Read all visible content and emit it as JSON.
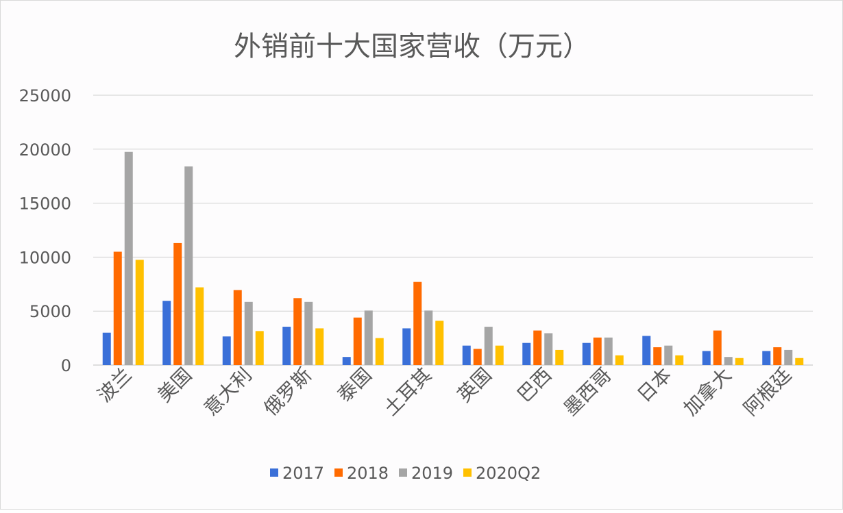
{
  "chart_data": {
    "type": "bar",
    "title": "外销前十大国家营收（万元）",
    "categories": [
      "波兰",
      "美国",
      "意大利",
      "俄罗斯",
      "泰国",
      "土耳其",
      "英国",
      "巴西",
      "墨西哥",
      "日本",
      "加拿大",
      "阿根廷"
    ],
    "series": [
      {
        "name": "2017",
        "color": "#3a6fd8",
        "values": [
          3000,
          5950,
          2650,
          3550,
          750,
          3400,
          1800,
          2050,
          2050,
          2700,
          1300,
          1300
        ]
      },
      {
        "name": "2018",
        "color": "#ff6a00",
        "values": [
          10500,
          11300,
          6950,
          6200,
          4400,
          7700,
          1500,
          3200,
          2550,
          1650,
          3200,
          1650
        ]
      },
      {
        "name": "2019",
        "color": "#a5a5a5",
        "values": [
          19750,
          18400,
          5850,
          5850,
          5050,
          5050,
          3550,
          2950,
          2550,
          1800,
          750,
          1400
        ]
      },
      {
        "name": "2020Q2",
        "color": "#ffc000",
        "values": [
          9750,
          7200,
          3150,
          3400,
          2500,
          4100,
          1800,
          1400,
          900,
          900,
          650,
          650
        ]
      }
    ],
    "xlabel": "",
    "ylabel": "",
    "ylim": [
      0,
      25000
    ],
    "yticks": [
      "0",
      "5000",
      "10000",
      "15000",
      "20000",
      "25000"
    ],
    "grid": true,
    "legend": "bottom"
  }
}
